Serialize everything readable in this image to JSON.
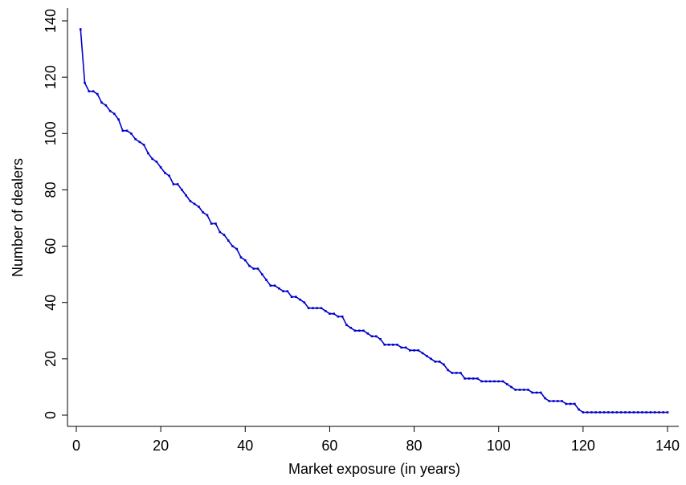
{
  "chart_data": {
    "type": "line",
    "title": "",
    "xlabel": "Market exposure (in years)",
    "ylabel": "Number of dealers",
    "xlim": [
      0,
      140
    ],
    "ylim": [
      0,
      140
    ],
    "xticks": [
      0,
      20,
      40,
      60,
      80,
      100,
      120,
      140
    ],
    "yticks": [
      0,
      20,
      40,
      60,
      80,
      100,
      120,
      140
    ],
    "xtick_labels": [
      "0",
      "20",
      "40",
      "60",
      "80",
      "100",
      "120",
      "140"
    ],
    "ytick_labels": [
      "0",
      "20",
      "40",
      "60",
      "80",
      "100",
      "120",
      "140"
    ],
    "grid": false,
    "legend": "none",
    "color": "#0000cc",
    "series": [
      {
        "x": [
          1,
          2,
          3,
          4,
          5,
          6,
          7,
          8,
          9,
          10,
          11,
          12,
          13,
          14,
          15,
          16,
          17,
          18,
          19,
          20,
          21,
          22,
          23,
          24,
          25,
          26,
          27,
          28,
          29,
          30,
          31,
          32,
          33,
          34,
          35,
          36,
          37,
          38,
          39,
          40,
          41,
          42,
          43,
          44,
          45,
          46,
          47,
          48,
          49,
          50,
          51,
          52,
          53,
          54,
          55,
          56,
          57,
          58,
          59,
          60,
          61,
          62,
          63,
          64,
          65,
          66,
          67,
          68,
          69,
          70,
          71,
          72,
          73,
          74,
          75,
          76,
          77,
          78,
          79,
          80,
          81,
          82,
          83,
          84,
          85,
          86,
          87,
          88,
          89,
          90,
          91,
          92,
          93,
          94,
          95,
          96,
          97,
          98,
          99,
          100,
          101,
          102,
          103,
          104,
          105,
          106,
          107,
          108,
          109,
          110,
          111,
          112,
          113,
          114,
          115,
          116,
          117,
          118,
          119,
          120,
          121,
          122,
          123,
          124,
          125,
          126,
          127,
          128,
          129,
          130,
          131,
          132,
          133,
          134,
          135,
          136,
          137,
          138,
          139,
          140
        ],
        "y": [
          137,
          118,
          115,
          115,
          114,
          111,
          110,
          108,
          107,
          105,
          101,
          101,
          100,
          98,
          97,
          96,
          93,
          91,
          90,
          88,
          86,
          85,
          82,
          82,
          80,
          78,
          76,
          75,
          74,
          72,
          71,
          68,
          68,
          65,
          64,
          62,
          60,
          59,
          56,
          55,
          53,
          52,
          52,
          50,
          48,
          46,
          46,
          45,
          44,
          44,
          42,
          42,
          41,
          40,
          38,
          38,
          38,
          38,
          37,
          36,
          36,
          35,
          35,
          32,
          31,
          30,
          30,
          30,
          29,
          28,
          28,
          27,
          25,
          25,
          25,
          25,
          24,
          24,
          23,
          23,
          23,
          22,
          21,
          20,
          19,
          19,
          18,
          16,
          15,
          15,
          15,
          13,
          13,
          13,
          13,
          12,
          12,
          12,
          12,
          12,
          12,
          11,
          10,
          9,
          9,
          9,
          9,
          8,
          8,
          8,
          6,
          5,
          5,
          5,
          5,
          4,
          4,
          4,
          2,
          1,
          1,
          1,
          1,
          1,
          1,
          1,
          1,
          1,
          1,
          1,
          1,
          1,
          1,
          1,
          1,
          1,
          1,
          1,
          1,
          1
        ]
      }
    ]
  }
}
